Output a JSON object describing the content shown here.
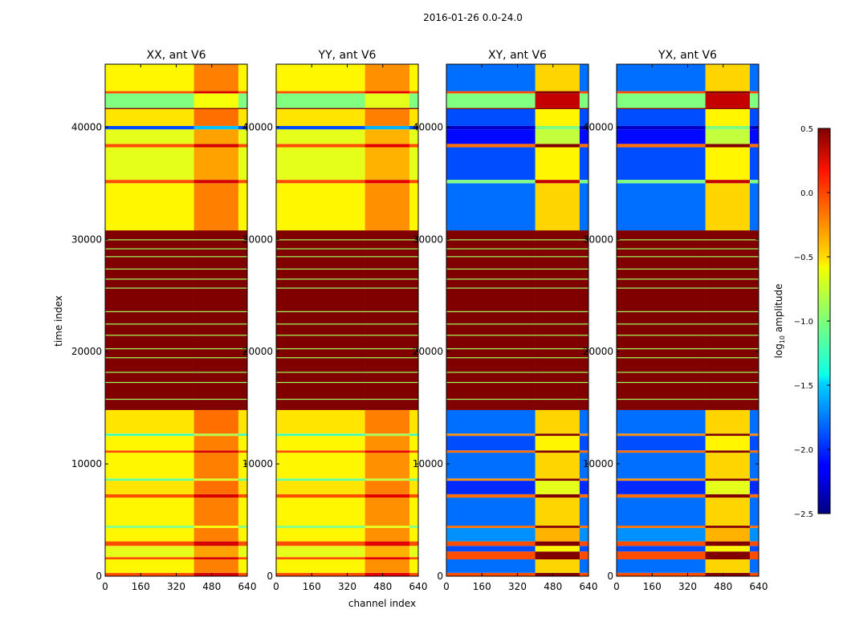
{
  "chart_data": {
    "type": "heatmap",
    "title": "2016-01-26 0.0-24.0",
    "xlabel": "channel index",
    "ylabel": "time index",
    "xlim": [
      0,
      640
    ],
    "ylim": [
      0,
      45600
    ],
    "xticks": [
      "0",
      "160",
      "320",
      "480",
      "640"
    ],
    "yticks": [
      "0",
      "10000",
      "20000",
      "30000",
      "40000"
    ],
    "colorbar": {
      "label_prefix": "log",
      "label_sub": "10",
      "label_suffix": " amplitude",
      "range": [
        -2.5,
        0.5
      ],
      "ticks": [
        "0.5",
        "0.0",
        "−0.5",
        "−1.0",
        "−1.5",
        "−2.0",
        "−2.5"
      ],
      "colormap": "jet"
    },
    "hot_channels": [
      400,
      600
    ],
    "flag_value": 0.5,
    "flagged_green_lines": [
      15800,
      17300,
      18200,
      19500,
      20300,
      21500,
      22500,
      23600,
      25700,
      26500,
      27400,
      28500,
      29200,
      30000
    ],
    "panels": [
      {
        "title": "XX, ant V6",
        "kind": "parallel",
        "hot_boost": 0.35
      },
      {
        "title": "YY, ant V6",
        "kind": "parallel",
        "hot_boost": 0.3
      },
      {
        "title": "XY, ant V6",
        "kind": "cross",
        "hot_boost": 1.3
      },
      {
        "title": "YX, ant V6",
        "kind": "cross",
        "hot_boost": 1.3
      }
    ],
    "bands": {
      "parallel": [
        [
          0,
          300,
          -0.1
        ],
        [
          300,
          1500,
          -0.6
        ],
        [
          1500,
          1700,
          -0.1
        ],
        [
          1700,
          2700,
          -0.7
        ],
        [
          2700,
          3100,
          -0.1
        ],
        [
          3100,
          4300,
          -0.6
        ],
        [
          4300,
          4500,
          -1.0
        ],
        [
          4500,
          7000,
          -0.6
        ],
        [
          7000,
          7300,
          -0.1
        ],
        [
          7300,
          8500,
          -0.55
        ],
        [
          8500,
          8700,
          -1.1
        ],
        [
          8700,
          11000,
          -0.6
        ],
        [
          11000,
          11200,
          -0.1
        ],
        [
          11200,
          12500,
          -0.6
        ],
        [
          12500,
          12700,
          -1.2
        ],
        [
          12700,
          14800,
          -0.55
        ],
        [
          14800,
          30800,
          0.5
        ],
        [
          30800,
          35000,
          -0.6
        ],
        [
          35000,
          35300,
          -0.1
        ],
        [
          35300,
          38200,
          -0.7
        ],
        [
          38200,
          38500,
          -0.1
        ],
        [
          38500,
          39800,
          -0.7
        ],
        [
          39800,
          40100,
          -1.9
        ],
        [
          40100,
          41600,
          -0.55
        ],
        [
          41600,
          41700,
          0.5
        ],
        [
          41700,
          43000,
          -1.0
        ],
        [
          43000,
          43200,
          -0.1
        ],
        [
          43200,
          45600,
          -0.6
        ]
      ],
      "cross": [
        [
          0,
          300,
          -0.1
        ],
        [
          300,
          1500,
          -1.8
        ],
        [
          1500,
          2200,
          -0.1
        ],
        [
          2200,
          2700,
          -1.9
        ],
        [
          2700,
          3100,
          -0.1
        ],
        [
          3100,
          4300,
          -1.7
        ],
        [
          4300,
          4500,
          -0.2
        ],
        [
          4500,
          7000,
          -1.8
        ],
        [
          7000,
          7300,
          -0.2
        ],
        [
          7300,
          8500,
          -2.0
        ],
        [
          8500,
          8700,
          -0.3
        ],
        [
          8700,
          11000,
          -1.8
        ],
        [
          11000,
          11200,
          -0.2
        ],
        [
          11200,
          12500,
          -1.9
        ],
        [
          12500,
          12700,
          -0.3
        ],
        [
          12700,
          14800,
          -1.8
        ],
        [
          14800,
          30800,
          0.5
        ],
        [
          30800,
          35000,
          -1.8
        ],
        [
          35000,
          35300,
          -1.0
        ],
        [
          35300,
          38200,
          -1.9
        ],
        [
          38200,
          38500,
          -0.2
        ],
        [
          38500,
          39800,
          -2.1
        ],
        [
          39800,
          40100,
          -2.3
        ],
        [
          40100,
          41600,
          -1.9
        ],
        [
          41600,
          41700,
          0.5
        ],
        [
          41700,
          43000,
          -1.0
        ],
        [
          43000,
          43200,
          -0.1
        ],
        [
          43200,
          45600,
          -1.8
        ]
      ]
    }
  }
}
